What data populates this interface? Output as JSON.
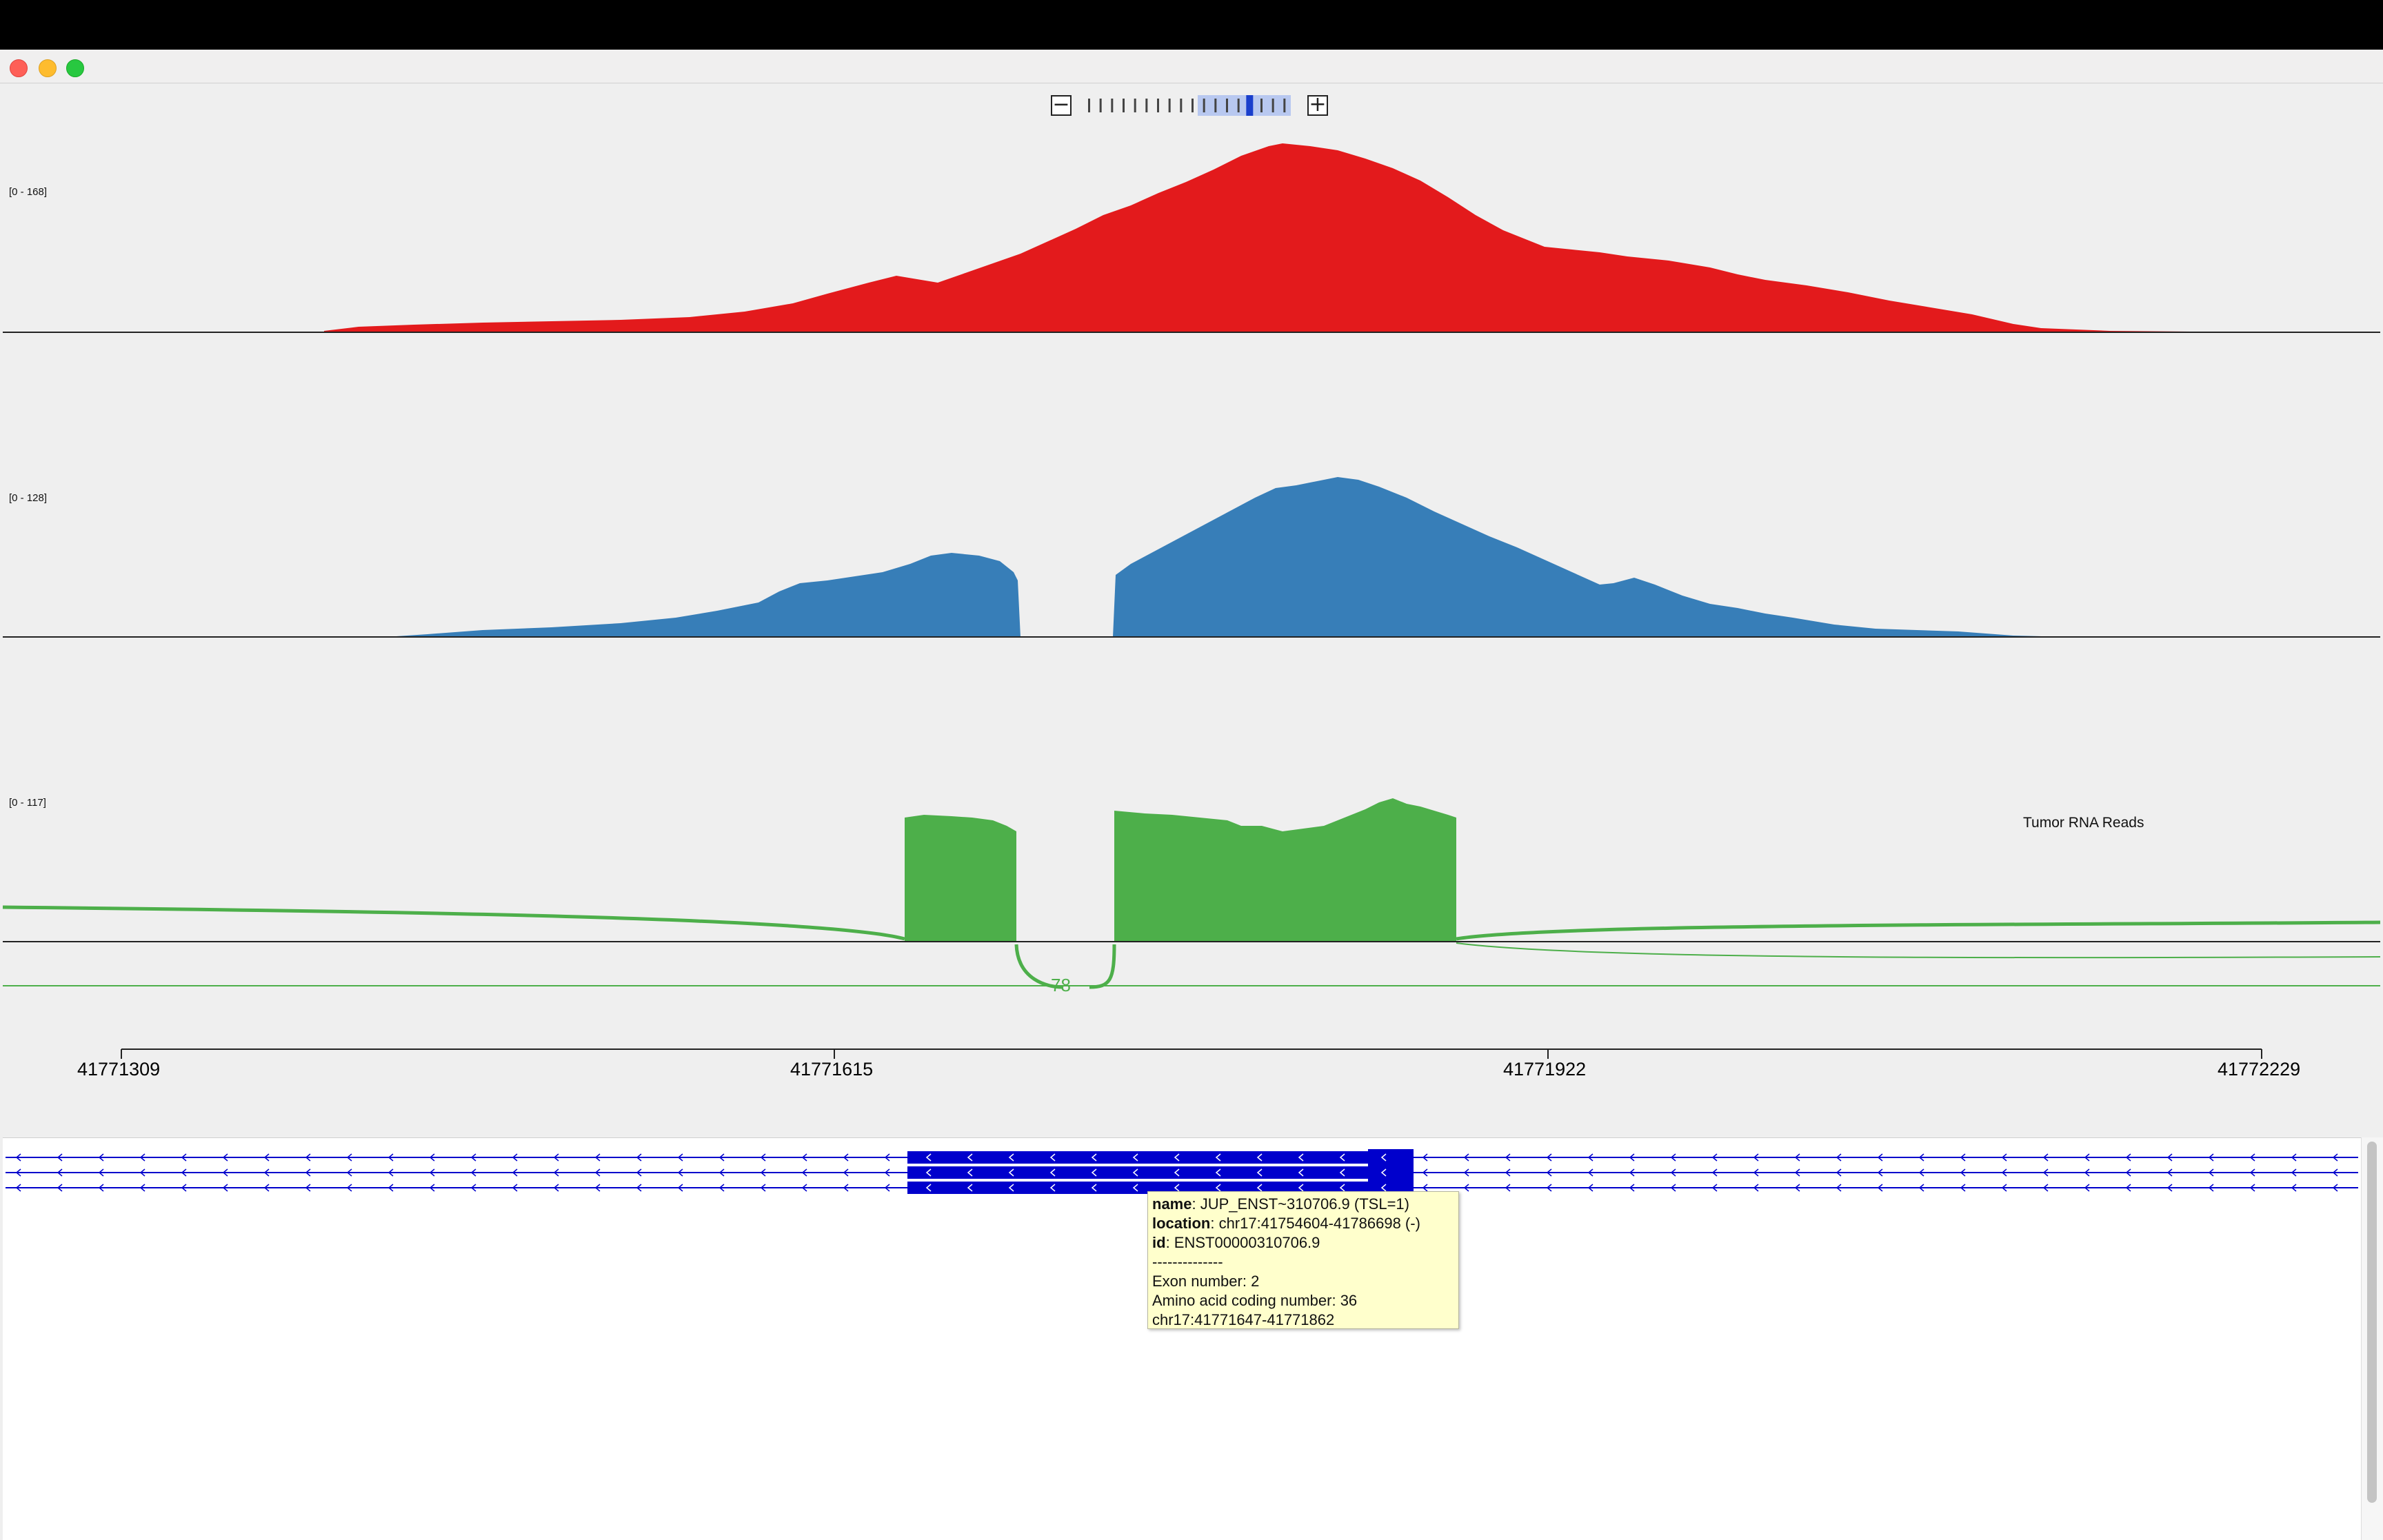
{
  "window": {
    "traffic_lights": [
      "close",
      "minimize",
      "zoom"
    ]
  },
  "zoom": {
    "minus_label": "−",
    "plus_label": "+",
    "level": 14,
    "max_level": 18
  },
  "tracks": [
    {
      "range_label": "[0 - 168]",
      "color": "#e31a1c",
      "max": 168
    },
    {
      "range_label": "[0 - 128]",
      "color": "#377eb8",
      "max": 128
    },
    {
      "range_label": "[0 - 117]",
      "color": "#4daf4a",
      "max": 117,
      "name": "Tumor RNA Reads",
      "junction_label": "78"
    }
  ],
  "ruler": {
    "labels": [
      "41771309",
      "41771615",
      "41771922",
      "41772229"
    ]
  },
  "gene": {
    "color": "#0000cc",
    "rows": 3
  },
  "tooltip": {
    "name_key": "name",
    "name_val": ": JUP_ENST~310706.9 (TSL=1)",
    "location_key": "location",
    "location_val": ": chr17:41754604-41786698 (-)",
    "id_key": "id",
    "id_val": ": ENST00000310706.9",
    "separator": "--------------",
    "exon": "Exon number: 2",
    "aa": "Amino acid coding number: 36",
    "region": "chr17:41771647-41771862"
  }
}
